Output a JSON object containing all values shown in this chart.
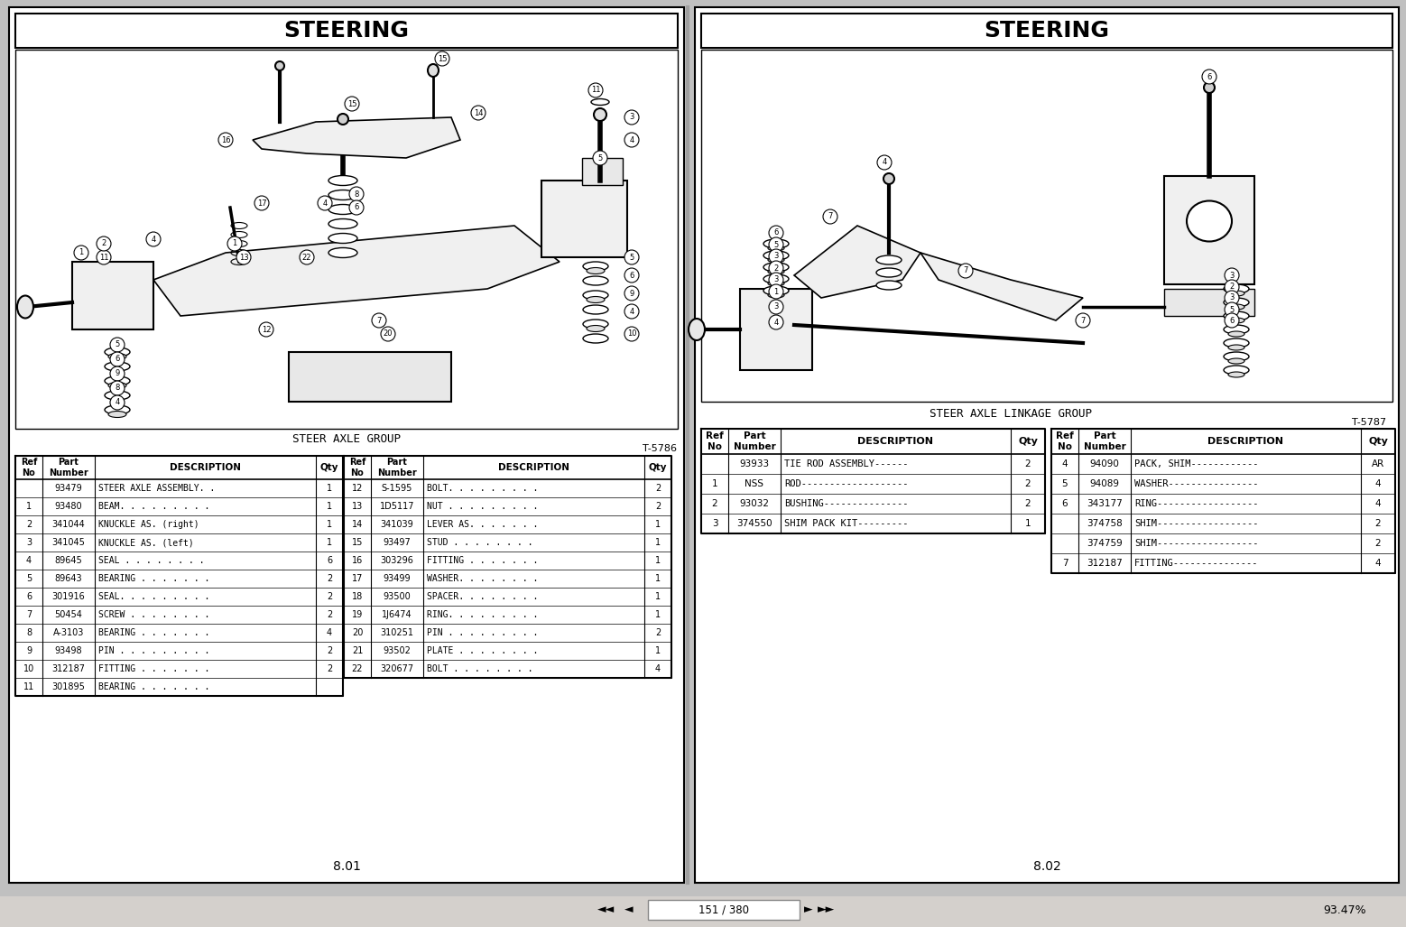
{
  "bg_color": "#c0c0c0",
  "page1": {
    "title": "STEERING",
    "diagram_label": "STEER AXLE GROUP",
    "figure_ref": "T-5786",
    "page_num": "8.01",
    "table1_headers": [
      "Ref\nNo",
      "Part\nNumber",
      "DESCRIPTION",
      "Qty"
    ],
    "table1_rows": [
      [
        "",
        "93479",
        "STEER AXLE ASSEMBLY. .",
        "1"
      ],
      [
        "1",
        "93480",
        "BEAM. . . . . . . . .",
        "1"
      ],
      [
        "2",
        "341044",
        "KNUCKLE AS. (right)",
        "1"
      ],
      [
        "3",
        "341045",
        "KNUCKLE AS. (left)",
        "1"
      ],
      [
        "4",
        "89645",
        "SEAL . . . . . . . .",
        "6"
      ],
      [
        "5",
        "89643",
        "BEARING . . . . . . .",
        "2"
      ],
      [
        "6",
        "301916",
        "SEAL. . . . . . . . .",
        "2"
      ],
      [
        "7",
        "50454",
        "SCREW . . . . . . . .",
        "2"
      ],
      [
        "8",
        "A-3103",
        "BEARING . . . . . . .",
        "4"
      ],
      [
        "9",
        "93498",
        "PIN . . . . . . . . .",
        "2"
      ],
      [
        "10",
        "312187",
        "FITTING . . . . . . .",
        "2"
      ],
      [
        "11",
        "301895",
        "BEARING . . . . . . .",
        ""
      ]
    ],
    "table2_headers": [
      "Ref\nNo",
      "Part\nNumber",
      "DESCRIPTION",
      "Qty"
    ],
    "table2_rows": [
      [
        "12",
        "S-1595",
        "BOLT. . . . . . . . .",
        "2"
      ],
      [
        "13",
        "1D5117",
        "NUT . . . . . . . . .",
        "2"
      ],
      [
        "14",
        "341039",
        "LEVER AS. . . . . . .",
        "1"
      ],
      [
        "15",
        "93497",
        "STUD . . . . . . . .",
        "1"
      ],
      [
        "16",
        "303296",
        "FITTING . . . . . . .",
        "1"
      ],
      [
        "17",
        "93499",
        "WASHER. . . . . . . .",
        "1"
      ],
      [
        "18",
        "93500",
        "SPACER. . . . . . . .",
        "1"
      ],
      [
        "19",
        "1J6474",
        "RING. . . . . . . . .",
        "1"
      ],
      [
        "20",
        "310251",
        "PIN . . . . . . . . .",
        "2"
      ],
      [
        "21",
        "93502",
        "PLATE . . . . . . . .",
        "1"
      ],
      [
        "22",
        "320677",
        "BOLT . . . . . . . .",
        "4"
      ]
    ]
  },
  "page2": {
    "title": "STEERING",
    "diagram_label": "STEER AXLE LINKAGE GROUP",
    "figure_ref": "T-5787",
    "page_num": "8.02",
    "table1_headers": [
      "Ref\nNo",
      "Part\nNumber",
      "DESCRIPTION",
      "Qty"
    ],
    "table1_rows": [
      [
        "",
        "93933",
        "TIE ROD ASSEMBLY------",
        "2"
      ],
      [
        "1",
        "NSS",
        "ROD-------------------",
        "2"
      ],
      [
        "2",
        "93032",
        "BUSHING---------------",
        "2"
      ],
      [
        "3",
        "374550",
        "SHIM PACK KIT---------",
        "1"
      ]
    ],
    "table2_headers": [
      "Ref\nNo",
      "Part\nNumber",
      "DESCRIPTION",
      "Qty"
    ],
    "table2_rows": [
      [
        "4",
        "94090",
        "PACK, SHIM------------",
        "AR"
      ],
      [
        "5",
        "94089",
        "WASHER----------------",
        "4"
      ],
      [
        "6",
        "343177",
        "RING------------------",
        "4"
      ],
      [
        "",
        "374758",
        "SHIM------------------",
        "2"
      ],
      [
        "",
        "374759",
        "SHIM------------------",
        "2"
      ],
      [
        "7",
        "312187",
        "FITTING---------------",
        "4"
      ]
    ]
  }
}
